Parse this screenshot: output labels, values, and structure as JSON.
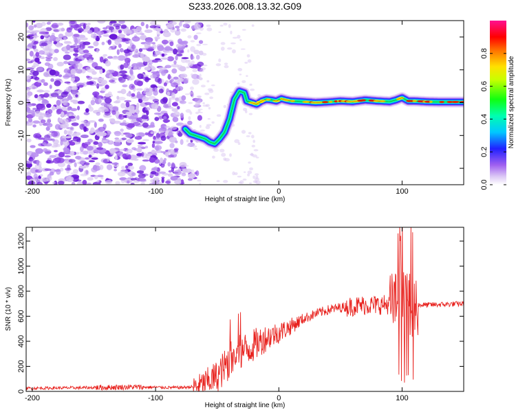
{
  "title": "S233.2026.008.13.32.G09",
  "colors": {
    "snr_line": "#e8231f",
    "speckle_light": "#d9c6f2",
    "speckle_mid": "#b78df0",
    "speckle_dark": "#8a3fe6",
    "speckle_deep": "#6a1ad8"
  },
  "chart_data": [
    {
      "type": "heatmap",
      "name": "spectrogram",
      "xlabel": "Height of straight line (km)",
      "ylabel": "Frequency (Hz)",
      "xlim": [
        -205,
        150
      ],
      "ylim": [
        -25,
        25
      ],
      "xticks": [
        -200,
        -100,
        0,
        100
      ],
      "xtick_labels": [
        "-200",
        "-100",
        "0",
        "100"
      ],
      "yticks": [
        -20,
        -10,
        0,
        10,
        20
      ],
      "ytick_labels": [
        "-20",
        "-10",
        "0",
        "10",
        "20"
      ],
      "noise_region_km": [
        -205,
        -75
      ],
      "ridge": {
        "x": [
          -76,
          -72,
          -68,
          -64,
          -60,
          -56,
          -52,
          -48,
          -44,
          -40,
          -36,
          -32,
          -28,
          -26,
          -22,
          -18,
          -14,
          -10,
          -6,
          -2,
          2,
          6,
          10,
          20,
          30,
          40,
          50,
          60,
          70,
          80,
          90,
          95,
          100,
          105,
          110,
          120,
          130,
          140,
          150
        ],
        "y": [
          -8,
          -9.5,
          -10,
          -10.5,
          -11,
          -12,
          -12.5,
          -11,
          -9,
          -5,
          1,
          3.5,
          3,
          0.5,
          0,
          -0.5,
          0.5,
          1,
          0.8,
          0.5,
          1.2,
          0.8,
          0.5,
          0.3,
          0,
          0.2,
          0.5,
          0.3,
          0.8,
          0.5,
          0.3,
          0.8,
          1.5,
          0.5,
          0.5,
          0.3,
          0.2,
          0.2,
          0.2
        ]
      },
      "colorbar": {
        "label": "Normalized spectral amplitude",
        "range": [
          0,
          1
        ],
        "ticks": [
          0.0,
          0.2,
          0.4,
          0.6,
          0.8
        ],
        "tick_labels": [
          "0.0",
          "0.2",
          "0.4",
          "0.6",
          "0.8"
        ]
      }
    },
    {
      "type": "line",
      "name": "snr",
      "xlabel": "Height of straight line (km)",
      "ylabel": "SNR (10 * v/v)",
      "xlim": [
        -205,
        150
      ],
      "ylim": [
        0,
        1310
      ],
      "xticks": [
        -200,
        -100,
        0,
        100
      ],
      "xtick_labels": [
        "-200",
        "-100",
        "0",
        "100"
      ],
      "yticks": [
        0,
        200,
        400,
        600,
        800,
        1000,
        1200
      ],
      "ytick_labels": [
        "0",
        "200",
        "400",
        "600",
        "800",
        "1000",
        "1200"
      ],
      "trend": {
        "x": [
          -205,
          -150,
          -120,
          -80,
          -65,
          -50,
          -40,
          -30,
          -20,
          -10,
          0,
          10,
          20,
          30,
          40,
          50,
          60,
          70,
          80,
          90,
          100,
          105,
          110,
          120,
          150
        ],
        "y": [
          25,
          30,
          35,
          30,
          40,
          120,
          240,
          310,
          370,
          430,
          470,
          520,
          580,
          620,
          650,
          670,
          680,
          690,
          690,
          695,
          700,
          680,
          690,
          690,
          700
        ]
      }
    }
  ]
}
